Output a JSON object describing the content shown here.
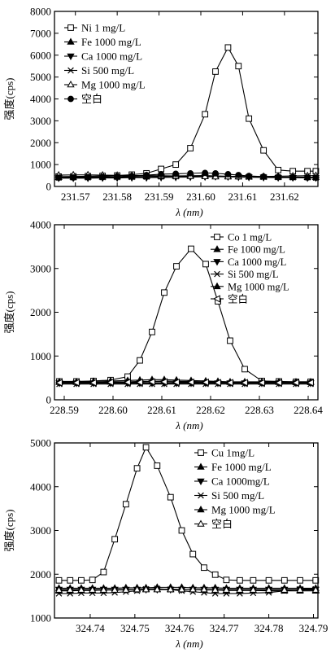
{
  "chart_data": [
    {
      "type": "line",
      "ylabel": "强度(cps)",
      "xlabel": "λ (nm)",
      "xlim": [
        231.565,
        231.628
      ],
      "ylim": [
        0,
        8000
      ],
      "xticks": [
        "231.57",
        "231.58",
        "231.59",
        "231.60",
        "231.61",
        "231.62"
      ],
      "yticks": [
        "0",
        "1000",
        "2000",
        "3000",
        "4000",
        "5000",
        "6000",
        "7000",
        "8000"
      ],
      "grid": false,
      "legend_position": "top-left",
      "x": [
        231.566,
        231.5695,
        231.573,
        231.5765,
        231.58,
        231.5835,
        231.587,
        231.5905,
        231.594,
        231.5975,
        231.601,
        231.6035,
        231.6065,
        231.609,
        231.6115,
        231.615,
        231.6185,
        231.622,
        231.6255,
        231.6275
      ],
      "series": [
        {
          "name": "Ni 1 mg/L",
          "marker": "square-open",
          "values": [
            450,
            460,
            470,
            480,
            500,
            540,
            600,
            800,
            1000,
            1750,
            3300,
            5250,
            6350,
            5500,
            3100,
            1650,
            750,
            700,
            700,
            700
          ]
        },
        {
          "name": "Fe 1000 mg/L",
          "marker": "triangle-up-filled",
          "values": [
            420,
            430,
            440,
            440,
            450,
            450,
            460,
            470,
            480,
            490,
            500,
            480,
            470,
            460,
            450,
            440,
            430,
            430,
            420,
            420
          ]
        },
        {
          "name": "Ca 1000 mg/L",
          "marker": "triangle-down-filled",
          "values": [
            380,
            380,
            380,
            390,
            390,
            400,
            400,
            410,
            420,
            430,
            440,
            450,
            440,
            430,
            420,
            410,
            400,
            400,
            390,
            390
          ]
        },
        {
          "name": "Si  500 mg/L",
          "marker": "x",
          "values": [
            400,
            410,
            410,
            420,
            420,
            430,
            440,
            450,
            460,
            470,
            480,
            470,
            460,
            450,
            440,
            430,
            420,
            410,
            410,
            400
          ]
        },
        {
          "name": "Mg 1000 mg/L",
          "marker": "triangle-up-open",
          "values": [
            520,
            530,
            530,
            520,
            510,
            500,
            500,
            490,
            480,
            470,
            460,
            450,
            450,
            450,
            450,
            460,
            470,
            480,
            490,
            500
          ]
        },
        {
          "name": "空白",
          "marker": "circle-filled",
          "values": [
            400,
            410,
            420,
            430,
            450,
            480,
            520,
            560,
            580,
            600,
            620,
            600,
            560,
            520,
            480,
            450,
            430,
            420,
            410,
            400
          ]
        }
      ]
    },
    {
      "type": "line",
      "ylabel": "强度(cps)",
      "xlabel": "λ (nm)",
      "xlim": [
        228.588,
        228.642
      ],
      "ylim": [
        0,
        4000
      ],
      "xticks": [
        "228.59",
        "228.60",
        "228.61",
        "228.62",
        "228.63",
        "228.64"
      ],
      "yticks": [
        "0",
        "1000",
        "2000",
        "3000",
        "4000"
      ],
      "grid": false,
      "legend_position": "top-right",
      "x": [
        228.589,
        228.5925,
        228.596,
        228.5995,
        228.603,
        228.6055,
        228.608,
        228.6105,
        228.613,
        228.616,
        228.619,
        228.6215,
        228.624,
        228.627,
        228.6305,
        228.634,
        228.6375,
        228.6405
      ],
      "series": [
        {
          "name": "Co 1 mg/L",
          "marker": "square-open",
          "values": [
            420,
            420,
            430,
            450,
            530,
            900,
            1550,
            2450,
            3050,
            3450,
            3100,
            2250,
            1350,
            700,
            430,
            420,
            410,
            410
          ]
        },
        {
          "name": "Fe 1000 mg/L",
          "marker": "triangle-up-filled",
          "values": [
            400,
            400,
            400,
            410,
            410,
            420,
            420,
            430,
            420,
            420,
            410,
            410,
            400,
            400,
            400,
            400,
            400,
            400
          ]
        },
        {
          "name": "Ca 1000 mg/L",
          "marker": "triangle-down-filled",
          "values": [
            380,
            380,
            380,
            380,
            380,
            380,
            380,
            380,
            380,
            380,
            380,
            380,
            380,
            380,
            380,
            380,
            380,
            380
          ]
        },
        {
          "name": "Si 500 mg/L",
          "marker": "x",
          "values": [
            360,
            360,
            360,
            360,
            360,
            360,
            360,
            360,
            360,
            360,
            360,
            360,
            360,
            360,
            360,
            360,
            360,
            360
          ]
        },
        {
          "name": "Mg 1000 mg/L",
          "marker": "triangle-up-filled",
          "values": [
            410,
            410,
            420,
            430,
            440,
            450,
            460,
            460,
            450,
            440,
            430,
            420,
            410,
            410,
            410,
            410,
            410,
            410
          ]
        },
        {
          "name": "空白",
          "marker": "triangle-left-open",
          "values": [
            390,
            390,
            390,
            400,
            400,
            400,
            410,
            410,
            400,
            400,
            400,
            390,
            390,
            390,
            390,
            390,
            390,
            390
          ]
        }
      ]
    },
    {
      "type": "line",
      "ylabel": "强度(cps)",
      "xlabel": "λ (nm)",
      "xlim": [
        324.732,
        324.791
      ],
      "ylim": [
        1000,
        5000
      ],
      "xticks": [
        "324.74",
        "324.75",
        "324.76",
        "324.77",
        "324.78",
        "324.79"
      ],
      "yticks": [
        "1000",
        "2000",
        "3000",
        "4000",
        "5000"
      ],
      "grid": false,
      "legend_position": "top-right",
      "x": [
        324.733,
        324.7355,
        324.738,
        324.7405,
        324.743,
        324.7455,
        324.748,
        324.7505,
        324.7525,
        324.755,
        324.758,
        324.7605,
        324.763,
        324.7655,
        324.768,
        324.7705,
        324.7735,
        324.7765,
        324.78,
        324.7835,
        324.787,
        324.7905
      ],
      "series": [
        {
          "name": "Cu 1mg/L",
          "marker": "square-open",
          "values": [
            1860,
            1860,
            1860,
            1870,
            2050,
            2800,
            3600,
            4420,
            4900,
            4480,
            3760,
            3000,
            2460,
            2150,
            1990,
            1870,
            1860,
            1860,
            1860,
            1860,
            1860,
            1860
          ]
        },
        {
          "name": "Fe 1000 mg/L",
          "marker": "triangle-up-filled",
          "values": [
            1680,
            1680,
            1680,
            1680,
            1680,
            1680,
            1690,
            1690,
            1690,
            1700,
            1700,
            1700,
            1690,
            1690,
            1690,
            1680,
            1680,
            1680,
            1680,
            1680,
            1680,
            1680
          ]
        },
        {
          "name": "Ca 1000mg/L",
          "marker": "triangle-down-filled",
          "values": [
            1650,
            1650,
            1650,
            1650,
            1650,
            1650,
            1650,
            1650,
            1650,
            1650,
            1650,
            1650,
            1650,
            1650,
            1650,
            1650,
            1650,
            1650,
            1650,
            1650,
            1650,
            1650
          ]
        },
        {
          "name": "Si  500 mg/L",
          "marker": "x",
          "values": [
            1560,
            1560,
            1570,
            1570,
            1570,
            1580,
            1600,
            1620,
            1660,
            1670,
            1650,
            1620,
            1600,
            1580,
            1560,
            1560,
            1560,
            1570,
            1580,
            1620,
            1660,
            1660
          ]
        },
        {
          "name": "Mg 1000 mg/L",
          "marker": "triangle-up-filled",
          "values": [
            1620,
            1620,
            1630,
            1630,
            1640,
            1640,
            1650,
            1650,
            1660,
            1660,
            1660,
            1650,
            1650,
            1640,
            1640,
            1630,
            1630,
            1630,
            1620,
            1620,
            1620,
            1620
          ]
        },
        {
          "name": "空白",
          "marker": "triangle-up-open",
          "values": [
            1640,
            1640,
            1640,
            1640,
            1640,
            1640,
            1640,
            1650,
            1650,
            1650,
            1650,
            1650,
            1650,
            1650,
            1640,
            1640,
            1640,
            1640,
            1640,
            1640,
            1640,
            1640
          ]
        }
      ]
    }
  ]
}
